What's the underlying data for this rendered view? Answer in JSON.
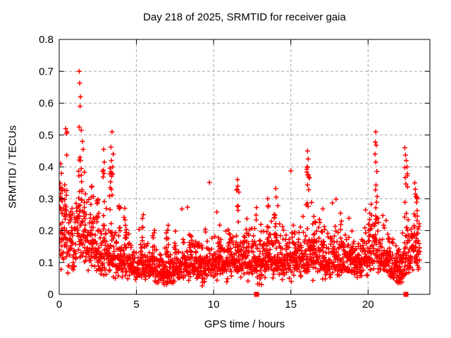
{
  "chart_data": {
    "type": "scatter",
    "title": "Day 218 of 2025, SRMTID for receiver gaia",
    "xlabel": "GPS time / hours",
    "ylabel": "SRMTID / TECUs",
    "xlim": [
      0,
      24
    ],
    "ylim": [
      0,
      0.8
    ],
    "xticks": [
      {
        "v": 0,
        "label": "0"
      },
      {
        "v": 5,
        "label": "5"
      },
      {
        "v": 10,
        "label": "10"
      },
      {
        "v": 15,
        "label": "15"
      },
      {
        "v": 20,
        "label": "20"
      }
    ],
    "yticks": [
      {
        "v": 0.0,
        "label": "0"
      },
      {
        "v": 0.1,
        "label": "0.1"
      },
      {
        "v": 0.2,
        "label": "0.2"
      },
      {
        "v": 0.3,
        "label": "0.3"
      },
      {
        "v": 0.4,
        "label": "0.4"
      },
      {
        "v": 0.5,
        "label": "0.5"
      },
      {
        "v": 0.6,
        "label": "0.6"
      },
      {
        "v": 0.7,
        "label": "0.7"
      },
      {
        "v": 0.8,
        "label": "0.8"
      }
    ],
    "grid": {
      "show": true,
      "color": "#aaaaaa",
      "dash": "4 3"
    },
    "legend": null,
    "colors": {
      "points": "#ff0000",
      "axis": "#000000",
      "background": "#ffffff"
    },
    "marker": {
      "shape": "plus",
      "size": 7,
      "stroke_width": 1.5
    },
    "baseline_squares": {
      "shape": "filled-square",
      "size": 7,
      "color": "#ff0000",
      "points": [
        [
          12.78,
          0
        ],
        [
          22.45,
          0
        ]
      ]
    },
    "explicit_points": [
      [
        0.42,
        0.52
      ],
      [
        0.47,
        0.505
      ],
      [
        0.1,
        0.41
      ],
      [
        0.15,
        0.38
      ],
      [
        1.3,
        0.7
      ],
      [
        1.33,
        0.663
      ],
      [
        1.38,
        0.62
      ],
      [
        1.35,
        0.59
      ],
      [
        1.29,
        0.525
      ],
      [
        1.43,
        0.515
      ],
      [
        1.5,
        0.48
      ],
      [
        1.55,
        0.455
      ],
      [
        2.88,
        0.455
      ],
      [
        2.92,
        0.415
      ],
      [
        3.42,
        0.51
      ],
      [
        3.35,
        0.462
      ],
      [
        3.5,
        0.44
      ],
      [
        3.38,
        0.42
      ],
      [
        3.45,
        0.4
      ],
      [
        4.25,
        0.27
      ],
      [
        5.45,
        0.25
      ],
      [
        11.55,
        0.36
      ],
      [
        11.52,
        0.33
      ],
      [
        13.5,
        0.3
      ],
      [
        14.02,
        0.332
      ],
      [
        14.05,
        0.305
      ],
      [
        16.08,
        0.45
      ],
      [
        16.12,
        0.425
      ],
      [
        16.05,
        0.4
      ],
      [
        20.5,
        0.51
      ],
      [
        20.47,
        0.478
      ],
      [
        20.53,
        0.468
      ],
      [
        20.45,
        0.44
      ],
      [
        20.5,
        0.415
      ],
      [
        22.38,
        0.46
      ],
      [
        22.42,
        0.437
      ],
      [
        22.47,
        0.42
      ],
      [
        22.52,
        0.4
      ],
      [
        23.02,
        0.35
      ],
      [
        23.06,
        0.33
      ]
    ],
    "clusters": [
      {
        "x": 0.15,
        "w": 0.12,
        "n": 12,
        "y0": 0.26,
        "y1": 0.35
      },
      {
        "x": 0.42,
        "w": 0.08,
        "n": 10,
        "y0": 0.22,
        "y1": 0.46
      },
      {
        "x": 0.8,
        "w": 0.1,
        "n": 6,
        "y0": 0.18,
        "y1": 0.28
      },
      {
        "x": 1.35,
        "w": 0.12,
        "n": 16,
        "y0": 0.22,
        "y1": 0.46
      },
      {
        "x": 1.7,
        "w": 0.1,
        "n": 8,
        "y0": 0.18,
        "y1": 0.33
      },
      {
        "x": 2.1,
        "w": 0.12,
        "n": 10,
        "y0": 0.18,
        "y1": 0.34
      },
      {
        "x": 2.5,
        "w": 0.1,
        "n": 8,
        "y0": 0.17,
        "y1": 0.3
      },
      {
        "x": 2.9,
        "w": 0.08,
        "n": 6,
        "y0": 0.2,
        "y1": 0.4
      },
      {
        "x": 3.4,
        "w": 0.12,
        "n": 12,
        "y0": 0.22,
        "y1": 0.4
      },
      {
        "x": 3.9,
        "w": 0.08,
        "n": 6,
        "y0": 0.17,
        "y1": 0.29
      },
      {
        "x": 4.3,
        "w": 0.08,
        "n": 5,
        "y0": 0.16,
        "y1": 0.26
      },
      {
        "x": 5.4,
        "w": 0.08,
        "n": 5,
        "y0": 0.14,
        "y1": 0.24
      },
      {
        "x": 6.1,
        "w": 0.08,
        "n": 5,
        "y0": 0.13,
        "y1": 0.21
      },
      {
        "x": 7.0,
        "w": 0.1,
        "n": 6,
        "y0": 0.13,
        "y1": 0.23
      },
      {
        "x": 7.5,
        "w": 0.08,
        "n": 4,
        "y0": 0.13,
        "y1": 0.2
      },
      {
        "x": 8.5,
        "w": 0.1,
        "n": 6,
        "y0": 0.13,
        "y1": 0.22
      },
      {
        "x": 9.0,
        "w": 0.08,
        "n": 4,
        "y0": 0.13,
        "y1": 0.2
      },
      {
        "x": 10.4,
        "w": 0.1,
        "n": 6,
        "y0": 0.13,
        "y1": 0.22
      },
      {
        "x": 11.0,
        "w": 0.08,
        "n": 5,
        "y0": 0.13,
        "y1": 0.21
      },
      {
        "x": 11.55,
        "w": 0.08,
        "n": 8,
        "y0": 0.16,
        "y1": 0.34
      },
      {
        "x": 12.2,
        "w": 0.1,
        "n": 6,
        "y0": 0.14,
        "y1": 0.25
      },
      {
        "x": 12.7,
        "w": 0.08,
        "n": 5,
        "y0": 0.14,
        "y1": 0.28
      },
      {
        "x": 13.5,
        "w": 0.1,
        "n": 8,
        "y0": 0.15,
        "y1": 0.29
      },
      {
        "x": 14.0,
        "w": 0.08,
        "n": 8,
        "y0": 0.15,
        "y1": 0.31
      },
      {
        "x": 15.2,
        "w": 0.08,
        "n": 5,
        "y0": 0.13,
        "y1": 0.21
      },
      {
        "x": 16.1,
        "w": 0.12,
        "n": 12,
        "y0": 0.17,
        "y1": 0.42
      },
      {
        "x": 16.5,
        "w": 0.1,
        "n": 6,
        "y0": 0.15,
        "y1": 0.28
      },
      {
        "x": 17.1,
        "w": 0.1,
        "n": 6,
        "y0": 0.14,
        "y1": 0.29
      },
      {
        "x": 17.8,
        "w": 0.08,
        "n": 4,
        "y0": 0.13,
        "y1": 0.22
      },
      {
        "x": 18.3,
        "w": 0.1,
        "n": 6,
        "y0": 0.13,
        "y1": 0.26
      },
      {
        "x": 19.0,
        "w": 0.08,
        "n": 4,
        "y0": 0.13,
        "y1": 0.2
      },
      {
        "x": 20.1,
        "w": 0.08,
        "n": 6,
        "y0": 0.14,
        "y1": 0.26
      },
      {
        "x": 20.5,
        "w": 0.1,
        "n": 10,
        "y0": 0.18,
        "y1": 0.42
      },
      {
        "x": 21.3,
        "w": 0.08,
        "n": 4,
        "y0": 0.12,
        "y1": 0.2
      },
      {
        "x": 22.45,
        "w": 0.12,
        "n": 10,
        "y0": 0.16,
        "y1": 0.4
      },
      {
        "x": 23.1,
        "w": 0.18,
        "n": 10,
        "y0": 0.13,
        "y1": 0.32
      },
      {
        "x": 6.8,
        "w": 0.3,
        "n": 10,
        "y0": 0.03,
        "y1": 0.065
      },
      {
        "x": 9.3,
        "w": 0.15,
        "n": 5,
        "y0": 0.025,
        "y1": 0.055
      },
      {
        "x": 13.0,
        "w": 0.2,
        "n": 8,
        "y0": 0.03,
        "y1": 0.065
      },
      {
        "x": 22.0,
        "w": 0.25,
        "n": 14,
        "y0": 0.035,
        "y1": 0.08
      }
    ],
    "cloud": {
      "seed": 20250218,
      "n": 2000,
      "x_start": 0.02,
      "x_end": 23.35,
      "sigma": 0.34,
      "y_min": 0.025,
      "y_max": 0.72,
      "mean_profile": [
        [
          0,
          0.17
        ],
        [
          0.3,
          0.2
        ],
        [
          0.6,
          0.16
        ],
        [
          1.0,
          0.16
        ],
        [
          1.4,
          0.19
        ],
        [
          1.8,
          0.16
        ],
        [
          2.2,
          0.15
        ],
        [
          2.6,
          0.14
        ],
        [
          3.0,
          0.13
        ],
        [
          3.4,
          0.135
        ],
        [
          3.8,
          0.12
        ],
        [
          4.2,
          0.115
        ],
        [
          4.6,
          0.105
        ],
        [
          5.0,
          0.1
        ],
        [
          5.5,
          0.095
        ],
        [
          6.0,
          0.085
        ],
        [
          6.5,
          0.08
        ],
        [
          7.0,
          0.078
        ],
        [
          7.5,
          0.082
        ],
        [
          8.0,
          0.095
        ],
        [
          8.5,
          0.1
        ],
        [
          9.0,
          0.095
        ],
        [
          9.5,
          0.09
        ],
        [
          10.0,
          0.095
        ],
        [
          10.5,
          0.1
        ],
        [
          11.0,
          0.105
        ],
        [
          11.5,
          0.115
        ],
        [
          12.0,
          0.11
        ],
        [
          12.5,
          0.105
        ],
        [
          13.0,
          0.1
        ],
        [
          13.5,
          0.11
        ],
        [
          14.0,
          0.11
        ],
        [
          14.5,
          0.105
        ],
        [
          15.0,
          0.11
        ],
        [
          15.5,
          0.115
        ],
        [
          16.0,
          0.125
        ],
        [
          16.5,
          0.12
        ],
        [
          17.0,
          0.115
        ],
        [
          17.5,
          0.108
        ],
        [
          18.0,
          0.112
        ],
        [
          18.5,
          0.108
        ],
        [
          19.0,
          0.102
        ],
        [
          19.5,
          0.108
        ],
        [
          20.0,
          0.125
        ],
        [
          20.5,
          0.135
        ],
        [
          21.0,
          0.12
        ],
        [
          21.5,
          0.1
        ],
        [
          22.0,
          0.09
        ],
        [
          22.5,
          0.115
        ],
        [
          23.0,
          0.135
        ],
        [
          23.35,
          0.14
        ]
      ]
    }
  }
}
